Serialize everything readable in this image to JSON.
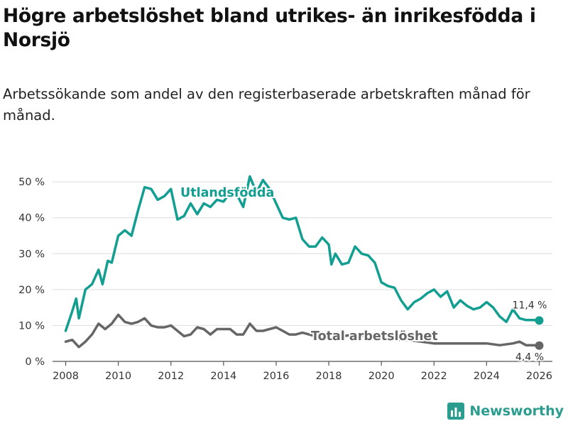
{
  "title": "Högre arbetslöshet bland utrikes- än inrikesfödda i Norsjö",
  "subtitle": "Arbetssökande som andel av den registerbaserade arbetskraften månad för månad.",
  "logo_text": "Newsworthy",
  "colors": {
    "foreign": "#129e91",
    "total": "#666666",
    "grid": "#dddddd",
    "brand": "#2a9d8f"
  },
  "chart_data": {
    "type": "line",
    "title": "Högre arbetslöshet bland utrikes- än inrikesfödda i Norsjö",
    "xlabel": "",
    "ylabel": "",
    "xlim": [
      2007.5,
      2026.5
    ],
    "ylim": [
      0,
      52
    ],
    "x_ticks": [
      2008,
      2010,
      2012,
      2014,
      2016,
      2018,
      2020,
      2022,
      2024,
      2026
    ],
    "y_ticks": [
      0,
      10,
      20,
      30,
      40,
      50
    ],
    "y_tick_labels": [
      "0 %",
      "10 %",
      "20 %",
      "30 %",
      "40 %",
      "50 %"
    ],
    "series": [
      {
        "name": "Utlandsfödda",
        "end_label": "11,4 %",
        "x": [
          2008.0,
          2008.25,
          2008.4,
          2008.5,
          2008.75,
          2009.0,
          2009.25,
          2009.4,
          2009.6,
          2009.75,
          2010.0,
          2010.25,
          2010.5,
          2010.75,
          2011.0,
          2011.25,
          2011.5,
          2011.75,
          2012.0,
          2012.25,
          2012.5,
          2012.75,
          2013.0,
          2013.25,
          2013.5,
          2013.75,
          2014.0,
          2014.25,
          2014.5,
          2014.75,
          2015.0,
          2015.25,
          2015.5,
          2015.75,
          2016.0,
          2016.25,
          2016.5,
          2016.75,
          2017.0,
          2017.25,
          2017.5,
          2017.75,
          2018.0,
          2018.1,
          2018.25,
          2018.5,
          2018.75,
          2019.0,
          2019.25,
          2019.5,
          2019.75,
          2020.0,
          2020.25,
          2020.5,
          2020.75,
          2021.0,
          2021.25,
          2021.5,
          2021.75,
          2022.0,
          2022.25,
          2022.5,
          2022.75,
          2023.0,
          2023.25,
          2023.5,
          2023.75,
          2024.0,
          2024.25,
          2024.5,
          2024.75,
          2025.0,
          2025.25,
          2025.5,
          2025.75,
          2026.0
        ],
        "values": [
          8.5,
          14.0,
          17.5,
          12.0,
          20.0,
          21.5,
          25.5,
          21.5,
          28.0,
          27.5,
          35.0,
          36.5,
          35.0,
          42.0,
          48.5,
          48.0,
          45.0,
          46.0,
          48.0,
          39.5,
          40.5,
          44.0,
          41.0,
          44.0,
          43.0,
          45.0,
          44.5,
          47.0,
          46.5,
          43.0,
          51.5,
          47.0,
          50.5,
          48.0,
          44.0,
          40.0,
          39.5,
          40.0,
          34.0,
          32.0,
          32.0,
          34.5,
          32.5,
          27.0,
          30.0,
          27.0,
          27.5,
          32.0,
          30.0,
          29.5,
          27.5,
          22.0,
          21.0,
          20.5,
          17.0,
          14.5,
          16.5,
          17.5,
          19.0,
          20.0,
          18.0,
          19.5,
          15.0,
          17.0,
          15.5,
          14.5,
          15.0,
          16.5,
          15.0,
          12.5,
          11.0,
          14.5,
          12.0,
          11.5,
          11.5,
          11.4
        ]
      },
      {
        "name": "Total arbetslöshet",
        "end_label": "4,4 %",
        "x": [
          2008.0,
          2008.25,
          2008.5,
          2008.75,
          2009.0,
          2009.25,
          2009.5,
          2009.75,
          2010.0,
          2010.25,
          2010.5,
          2010.75,
          2011.0,
          2011.25,
          2011.5,
          2011.75,
          2012.0,
          2012.25,
          2012.5,
          2012.75,
          2013.0,
          2013.25,
          2013.5,
          2013.75,
          2014.0,
          2014.25,
          2014.5,
          2014.75,
          2015.0,
          2015.25,
          2015.5,
          2015.75,
          2016.0,
          2016.25,
          2016.5,
          2016.75,
          2017.0,
          2017.25,
          2017.5,
          2017.75,
          2018.0,
          2018.5,
          2019.0,
          2019.5,
          2020.0,
          2020.5,
          2021.0,
          2021.5,
          2022.0,
          2022.5,
          2023.0,
          2023.5,
          2024.0,
          2024.5,
          2025.0,
          2025.25,
          2025.5,
          2025.75,
          2026.0
        ],
        "values": [
          5.5,
          6.0,
          4.0,
          5.5,
          7.5,
          10.5,
          9.0,
          10.5,
          13.0,
          11.0,
          10.5,
          11.0,
          12.0,
          10.0,
          9.5,
          9.5,
          10.0,
          8.5,
          7.0,
          7.5,
          9.5,
          9.0,
          7.5,
          9.0,
          9.0,
          9.0,
          7.5,
          7.5,
          10.5,
          8.5,
          8.5,
          9.0,
          9.5,
          8.5,
          7.5,
          7.5,
          8.0,
          7.5,
          7.0,
          7.0,
          7.5,
          7.0,
          7.5,
          7.0,
          6.5,
          6.0,
          6.0,
          5.5,
          5.0,
          5.0,
          5.0,
          5.0,
          5.0,
          4.5,
          5.0,
          5.5,
          4.5,
          4.5,
          4.4
        ]
      }
    ]
  }
}
